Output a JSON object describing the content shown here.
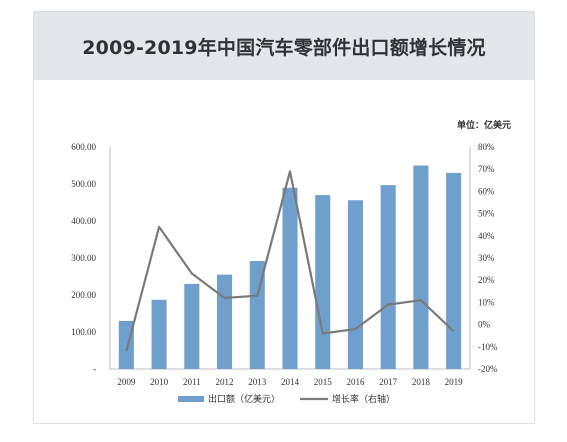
{
  "title": "2009-2019年中国汽车零部件出口额增长情况",
  "unit_label": "单位：亿美元",
  "chart_data": {
    "type": "bar+line",
    "categories": [
      "2009",
      "2010",
      "2011",
      "2012",
      "2013",
      "2014",
      "2015",
      "2016",
      "2017",
      "2018",
      "2019"
    ],
    "series": [
      {
        "name": "出口额（亿美元）",
        "type": "bar",
        "axis": "left",
        "color": "#6f9fcc",
        "values": [
          130,
          187,
          230,
          255,
          292,
          490,
          470,
          456,
          497,
          550,
          530
        ]
      },
      {
        "name": "增长率（右轴）",
        "type": "line",
        "axis": "right",
        "color": "#7a7a7a",
        "values": [
          -12,
          44,
          23,
          12,
          13,
          69,
          -4,
          -2,
          9,
          11,
          -3
        ]
      }
    ],
    "y_left": {
      "min": 0,
      "max": 600,
      "ticks": [
        "-",
        "100.00",
        "200.00",
        "300.00",
        "400.00",
        "500.00",
        "600.00"
      ]
    },
    "y_right": {
      "min": -20,
      "max": 80,
      "ticks": [
        "-20%",
        "-10%",
        "0%",
        "10%",
        "20%",
        "30%",
        "40%",
        "50%",
        "60%",
        "70%",
        "80%"
      ]
    },
    "legend_position": "bottom",
    "grid": false
  }
}
